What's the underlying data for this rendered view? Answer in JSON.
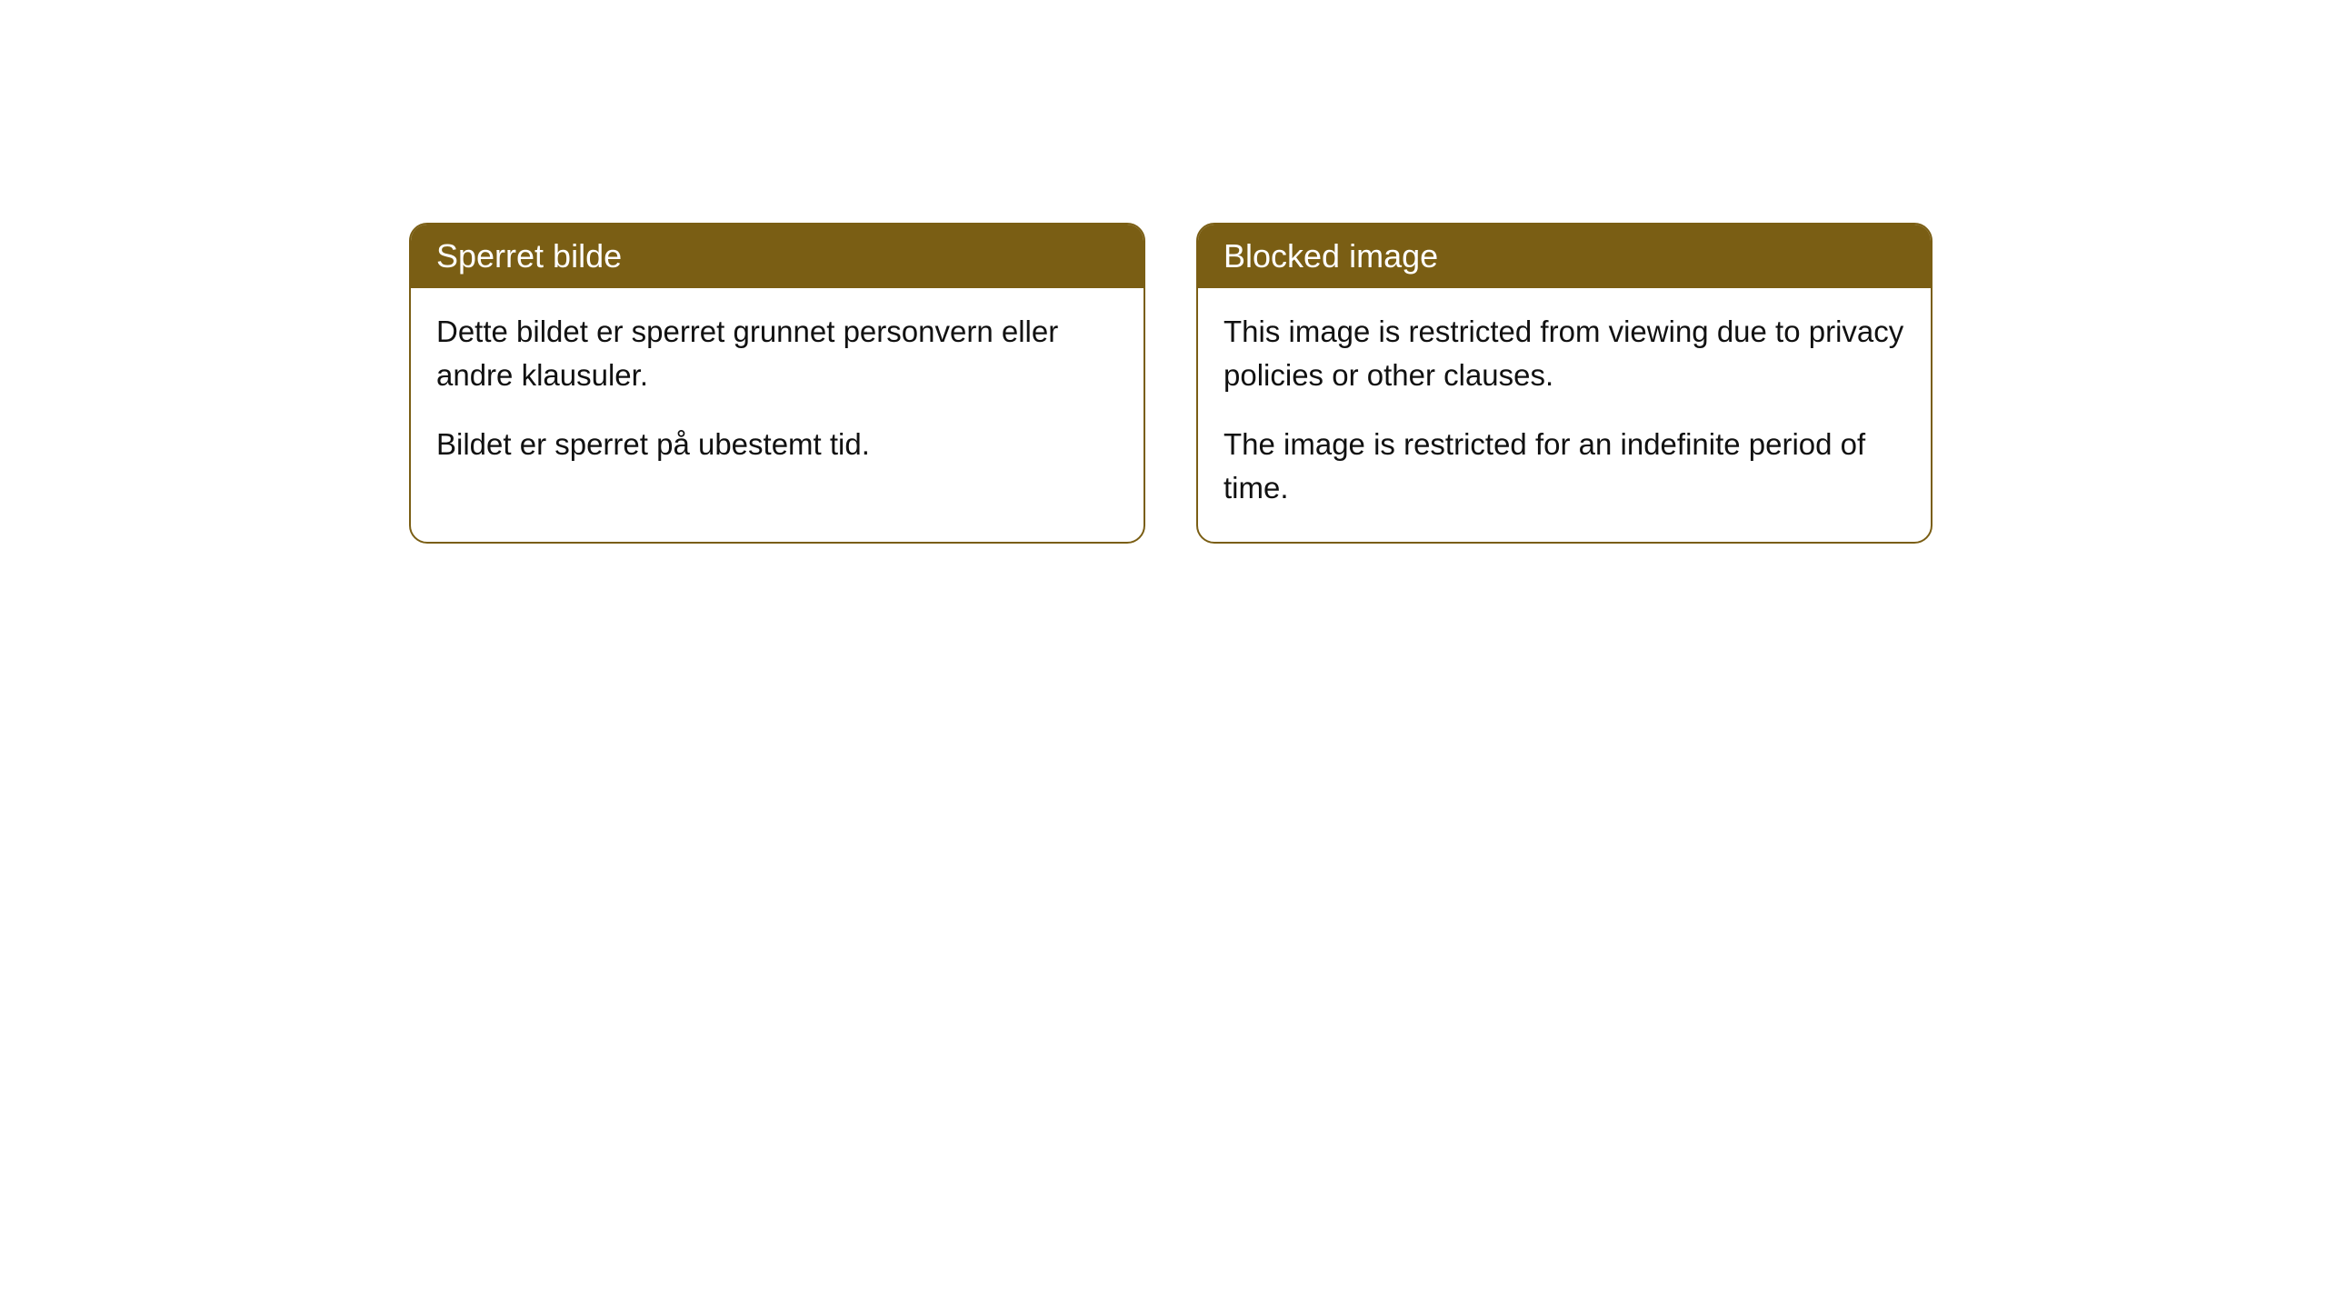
{
  "cards": [
    {
      "title": "Sperret bilde",
      "paragraph1": "Dette bildet er sperret grunnet personvern eller andre klausuler.",
      "paragraph2": "Bildet er sperret på ubestemt tid."
    },
    {
      "title": "Blocked image",
      "paragraph1": "This image is restricted from viewing due to privacy policies or other clauses.",
      "paragraph2": "The image is restricted for an indefinite period of time."
    }
  ],
  "style": {
    "header_background": "#7a5e14",
    "header_text_color": "#ffffff",
    "border_color": "#7a5e14",
    "body_background": "#ffffff",
    "body_text_color": "#111111",
    "border_radius": 20,
    "header_fontsize": 36,
    "body_fontsize": 33
  }
}
